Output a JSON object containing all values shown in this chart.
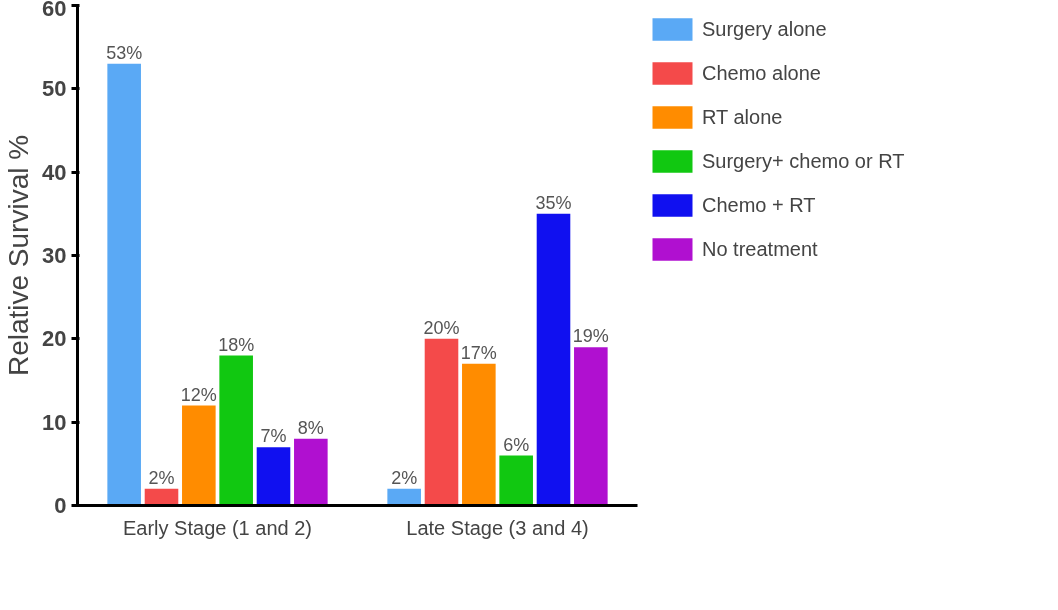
{
  "chart_data": {
    "type": "bar",
    "ylabel": "Relative Survival %",
    "categories": [
      "Early Stage (1 and 2)",
      "Late Stage (3 and 4)"
    ],
    "series": [
      {
        "name": "Surgery alone",
        "color": "#5aa9f5",
        "values": [
          53,
          2
        ],
        "value_labels": [
          "53%",
          "2%"
        ]
      },
      {
        "name": "Chemo alone",
        "color": "#f44a4a",
        "values": [
          2,
          20
        ],
        "value_labels": [
          "2%",
          "20%"
        ]
      },
      {
        "name": "RT alone",
        "color": "#ff8c00",
        "values": [
          12,
          17
        ],
        "value_labels": [
          "12%",
          "17%"
        ]
      },
      {
        "name": "Surgery+ chemo or RT",
        "color": "#11c811",
        "values": [
          18,
          6
        ],
        "value_labels": [
          "18%",
          "6%"
        ]
      },
      {
        "name": "Chemo + RT",
        "color": "#1010f0",
        "values": [
          7,
          35
        ],
        "value_labels": [
          "7%",
          "35%"
        ]
      },
      {
        "name": "No treatment",
        "color": "#b010d0",
        "values": [
          8,
          19
        ],
        "value_labels": [
          "8%",
          "19%"
        ]
      }
    ],
    "ylim": [
      0,
      60
    ],
    "yticks": [
      0,
      10,
      20,
      30,
      40,
      50,
      60
    ],
    "grid": false,
    "legend": "right"
  }
}
